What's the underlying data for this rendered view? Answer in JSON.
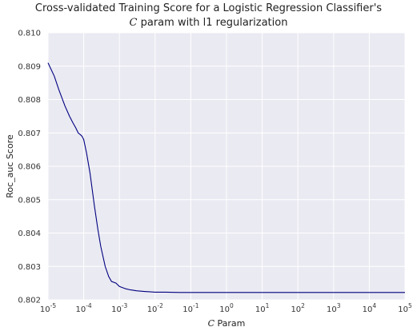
{
  "chart_data": {
    "type": "line",
    "title_line1": "Cross-validated Training Score for a Logistic Regression Classifier's",
    "title_line2_var": "C",
    "title_line2_rest": " param with l1 regularization",
    "xlabel_var": "C",
    "xlabel_rest": " Param",
    "ylabel": "Roc_auc Score",
    "x_scale": "log",
    "xlim": [
      1e-05,
      100000
    ],
    "ylim": [
      0.802,
      0.81
    ],
    "grid": true,
    "x_tick_values": [
      1e-05,
      0.0001,
      0.001,
      0.01,
      0.1,
      1,
      10,
      100,
      1000,
      10000,
      100000
    ],
    "x_tick_labels": [
      {
        "base": "10",
        "exp": "-5"
      },
      {
        "base": "10",
        "exp": "-4"
      },
      {
        "base": "10",
        "exp": "-3"
      },
      {
        "base": "10",
        "exp": "-2"
      },
      {
        "base": "10",
        "exp": "-1"
      },
      {
        "base": "10",
        "exp": "0"
      },
      {
        "base": "10",
        "exp": "1"
      },
      {
        "base": "10",
        "exp": "2"
      },
      {
        "base": "10",
        "exp": "3"
      },
      {
        "base": "10",
        "exp": "4"
      },
      {
        "base": "10",
        "exp": "5"
      }
    ],
    "y_ticks": [
      "0.802",
      "0.803",
      "0.804",
      "0.805",
      "0.806",
      "0.807",
      "0.808",
      "0.809",
      "0.810"
    ],
    "series": [
      {
        "color": "#000080",
        "x": [
          1e-05,
          1.5e-05,
          2e-05,
          3e-05,
          4e-05,
          5e-05,
          6e-05,
          7e-05,
          8e-05,
          9e-05,
          0.0001,
          0.00012,
          0.00015,
          0.0002,
          0.00025,
          0.0003,
          0.0004,
          0.0005,
          0.0006,
          0.0008,
          0.001,
          0.0015,
          0.002,
          0.003,
          0.005,
          0.007,
          0.01,
          0.02,
          0.05,
          0.1,
          0.3,
          1,
          3,
          10,
          30,
          100,
          300,
          1000,
          3000,
          10000,
          30000,
          100000
        ],
        "y": [
          0.8091,
          0.8087,
          0.8083,
          0.8078,
          0.8075,
          0.8073,
          0.80715,
          0.807,
          0.80695,
          0.8069,
          0.8068,
          0.8064,
          0.8058,
          0.8048,
          0.8041,
          0.8036,
          0.803,
          0.8027,
          0.80255,
          0.8025,
          0.8024,
          0.80233,
          0.8023,
          0.80227,
          0.80225,
          0.80224,
          0.80223,
          0.80223,
          0.80222,
          0.80222,
          0.80222,
          0.80222,
          0.80222,
          0.80222,
          0.80222,
          0.80222,
          0.80222,
          0.80222,
          0.80222,
          0.80222,
          0.80222,
          0.80222
        ]
      }
    ]
  }
}
